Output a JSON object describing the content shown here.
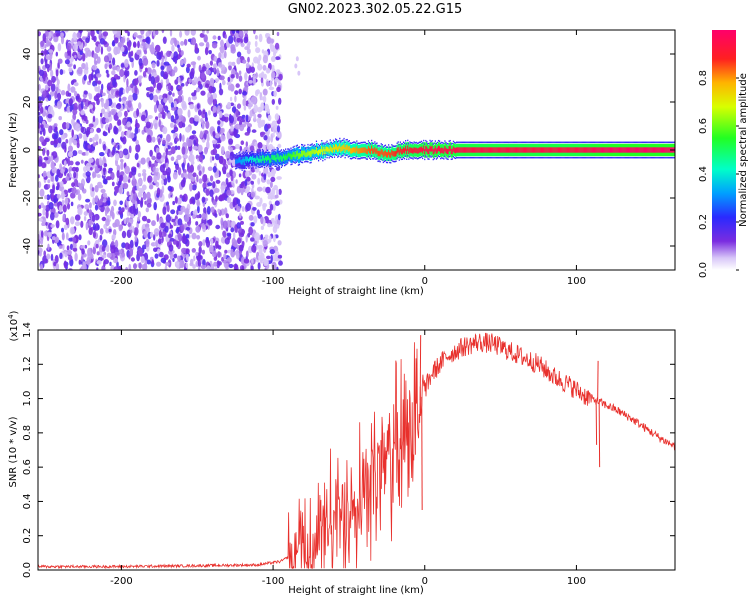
{
  "chart_data": [
    {
      "type": "heatmap",
      "title": "GN02.2023.302.05.22.G15",
      "xlabel": "Height of straight line (km)",
      "ylabel": "Frequency (Hz)",
      "xlim": [
        -255,
        165
      ],
      "ylim": [
        -50,
        50
      ],
      "xticks": [
        -200,
        -100,
        0,
        100
      ],
      "yticks": [
        -40,
        -20,
        0,
        20,
        40
      ],
      "colorbar": {
        "label": "Normalized spectral amplitude",
        "range": [
          0,
          1
        ],
        "ticks": [
          "0.0",
          "0.2",
          "0.4",
          "0.6",
          "0.8"
        ]
      },
      "noise_region": {
        "x_start": -255,
        "x_end": -100,
        "level": "low (0.1-0.2)"
      },
      "signal_ridge": {
        "x": [
          -125,
          -115,
          -105,
          -95,
          -85,
          -75,
          -65,
          -55,
          -45,
          -35,
          -25,
          -15,
          0,
          20,
          40,
          60,
          80,
          100,
          120,
          140,
          165
        ],
        "frequency": [
          -5,
          -4,
          -4,
          -3,
          -2,
          -1,
          0,
          1,
          0,
          0,
          -2,
          0,
          0,
          0,
          0,
          0,
          0,
          0,
          0,
          0,
          0
        ],
        "amplitude": [
          0.3,
          0.4,
          0.5,
          0.5,
          0.6,
          0.65,
          0.7,
          0.75,
          0.8,
          0.85,
          0.85,
          0.9,
          0.95,
          0.95,
          0.95,
          0.95,
          0.95,
          0.95,
          1.0,
          1.0,
          1.0
        ]
      }
    },
    {
      "type": "line",
      "xlabel": "Height of straight line (km)",
      "ylabel": "SNR (10 * v/v)",
      "y_multiplier": "(x10",
      "y_multiplier_exp": "4",
      "y_multiplier_close": ")",
      "xlim": [
        -255,
        165
      ],
      "ylim": [
        0,
        1.4
      ],
      "xticks": [
        -200,
        -100,
        0,
        100
      ],
      "yticks": [
        "0.0",
        "0.2",
        "0.4",
        "0.6",
        "0.8",
        "1.0",
        "1.2",
        "1.4"
      ],
      "series": [
        {
          "color": "#e8302c",
          "x": [
            -255,
            -200,
            -150,
            -110,
            -95,
            -85,
            -75,
            -65,
            -55,
            -45,
            -35,
            -25,
            -15,
            -5,
            5,
            15,
            25,
            35,
            45,
            55,
            65,
            75,
            85,
            95,
            105,
            115,
            125,
            135,
            145,
            155,
            165
          ],
          "y": [
            0.02,
            0.02,
            0.025,
            0.03,
            0.05,
            0.1,
            0.15,
            0.2,
            0.3,
            0.45,
            0.55,
            0.65,
            0.8,
            0.95,
            1.15,
            1.25,
            1.3,
            1.33,
            1.32,
            1.28,
            1.24,
            1.2,
            1.13,
            1.08,
            1.02,
            0.98,
            0.94,
            0.89,
            0.83,
            0.77,
            0.72
          ]
        }
      ]
    }
  ]
}
